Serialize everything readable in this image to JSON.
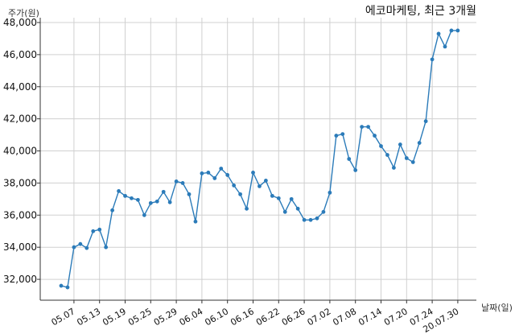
{
  "chart_data": {
    "type": "line",
    "title": "에코마케팅, 최근 3개월",
    "ylabel": "주가(원)",
    "xlabel": "날짜(일)",
    "ylim": [
      30700,
      48300
    ],
    "yticks": [
      32000,
      34000,
      36000,
      38000,
      40000,
      42000,
      44000,
      46000,
      48000
    ],
    "ytick_labels": [
      "32,000",
      "34,000",
      "36,000",
      "38,000",
      "40,000",
      "42,000",
      "44,000",
      "46,000",
      "48,000"
    ],
    "xtick_labels": [
      "05.07",
      "05.13",
      "05.19",
      "05.25",
      "05.29",
      "06.04",
      "06.10",
      "06.16",
      "06.22",
      "06.26",
      "07.02",
      "07.08",
      "07.14",
      "07.20",
      "07.24",
      "20.07.30"
    ],
    "xtick_index": [
      2,
      6,
      10,
      14,
      18,
      22,
      26,
      30,
      34,
      38,
      42,
      46,
      50,
      54,
      58,
      62
    ],
    "x_count": 63,
    "grid": true,
    "line_color": "#2b7bb9",
    "series": [
      {
        "values": [
          31600,
          31500,
          34000,
          34200,
          33950,
          35000,
          35100,
          34000,
          36300,
          37500,
          37200,
          37050,
          36950,
          36000,
          36750,
          36850,
          37450,
          36800,
          38100,
          38000,
          37300,
          35600,
          38600,
          38650,
          38300,
          38900,
          38500,
          37850,
          37300,
          36400,
          38650,
          37800,
          38150,
          37200,
          37050,
          36200,
          37000,
          36400,
          35700,
          35700,
          35800,
          36200,
          37400,
          40950,
          41050,
          39500,
          38800,
          41500,
          41500,
          40950,
          40300,
          39750,
          38950,
          40400,
          39550,
          39300,
          40500,
          41850,
          45700,
          47300,
          46500,
          47500,
          47500
        ]
      }
    ]
  }
}
